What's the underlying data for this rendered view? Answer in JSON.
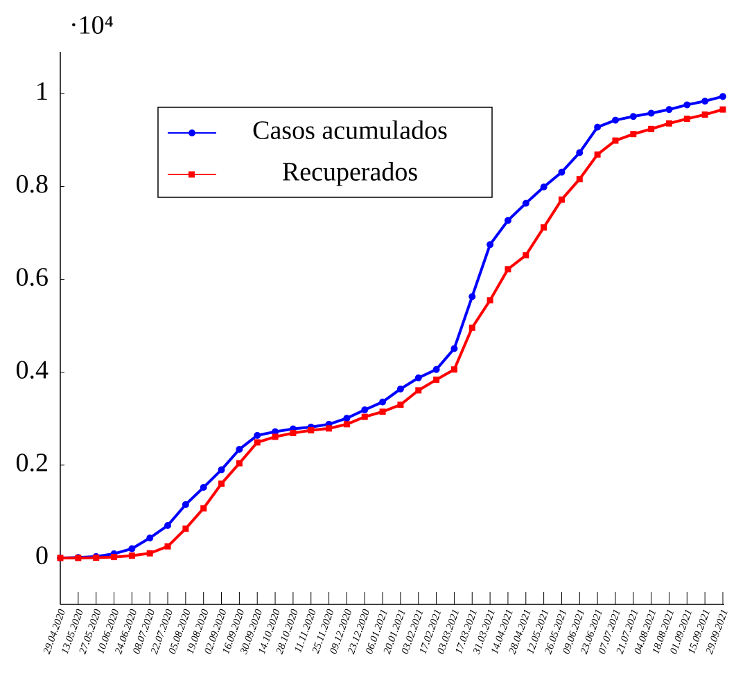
{
  "chart_data": {
    "type": "line",
    "y_multiplier": "·10⁴",
    "categories": [
      "29.04.2020",
      "13.05.2020",
      "27.05.2020",
      "10.06.2020",
      "24.06.2020",
      "08.07.2020",
      "22.07.2020",
      "05.08.2020",
      "19.08.2020",
      "02.09.2020",
      "16.09.2020",
      "30.09.2020",
      "14.10.2020",
      "28.10.2020",
      "11.11.2020",
      "25.11.2020",
      "09.12.2020",
      "23.12.2020",
      "06.01.2021",
      "20.01.2021",
      "03.02.2021",
      "17.02.2021",
      "03.03.2021",
      "17.03.2021",
      "31.03.2021",
      "14.04.2021",
      "28.04.2021",
      "12.05.2021",
      "26.05.2021",
      "09.06.2021",
      "23.06.2021",
      "07.07.2021",
      "21.07.2021",
      "04.08.2021",
      "18.08.2021",
      "01.09.2021",
      "15.09.2021",
      "29.09.2021"
    ],
    "series": [
      {
        "name": "Casos acumulados",
        "color": "#0000ff",
        "marker": "circle",
        "values": [
          0,
          10,
          30,
          90,
          200,
          430,
          700,
          1150,
          1520,
          1900,
          2340,
          2640,
          2720,
          2780,
          2820,
          2880,
          3010,
          3190,
          3360,
          3640,
          3880,
          4060,
          4510,
          5630,
          6750,
          7270,
          7640,
          7990,
          8310,
          8730,
          9280,
          9430,
          9510,
          9580,
          9660,
          9760,
          9840,
          9940
        ]
      },
      {
        "name": "Recuperados",
        "color": "#ff0000",
        "marker": "square",
        "values": [
          0,
          0,
          5,
          20,
          50,
          100,
          250,
          630,
          1070,
          1600,
          2040,
          2490,
          2610,
          2690,
          2750,
          2790,
          2880,
          3040,
          3150,
          3300,
          3610,
          3840,
          4060,
          4960,
          5550,
          6220,
          6520,
          7120,
          7720,
          8160,
          8690,
          8990,
          9130,
          9240,
          9360,
          9460,
          9550,
          9660
        ]
      }
    ],
    "ylim": [
      -1000,
      10900
    ],
    "yticks": [
      0,
      {
        "value": 2000,
        "label": "0.2"
      },
      {
        "value": 4000,
        "label": "0.4"
      },
      {
        "value": 6000,
        "label": "0.6"
      },
      {
        "value": 8000,
        "label": "0.8"
      },
      {
        "value": 10000,
        "label": "1"
      }
    ],
    "grid": false
  }
}
